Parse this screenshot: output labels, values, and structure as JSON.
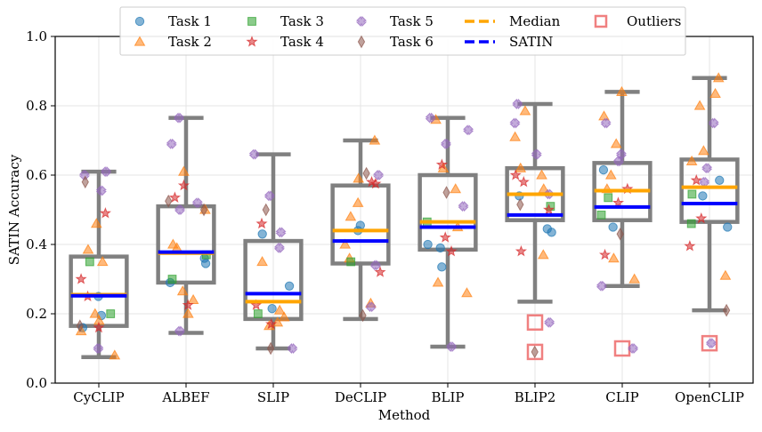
{
  "chart_data": {
    "type": "box",
    "xlabel": "Method",
    "ylabel": "SATIN Accuracy",
    "ylim": [
      0,
      1
    ],
    "yticks": [
      "0.0",
      "0.2",
      "0.4",
      "0.6",
      "0.8",
      "1.0"
    ],
    "ytick_values": [
      0,
      0.2,
      0.4,
      0.6,
      0.8,
      1.0
    ],
    "grid": true,
    "legend_position": "top-center",
    "categories": [
      "CyCLIP",
      "ALBEF",
      "SLIP",
      "DeCLIP",
      "BLIP",
      "BLIP2",
      "CLIP",
      "OpenCLIP"
    ],
    "legend": [
      {
        "label": "Task 1",
        "kind": "circle",
        "color": "#1f77b4"
      },
      {
        "label": "Task 2",
        "kind": "triangle",
        "color": "#ff7f0e"
      },
      {
        "label": "Task 3",
        "kind": "square",
        "color": "#2ca02c"
      },
      {
        "label": "Task 4",
        "kind": "star",
        "color": "#d62728"
      },
      {
        "label": "Task 5",
        "kind": "x",
        "color": "#9467bd"
      },
      {
        "label": "Task 6",
        "kind": "diamond",
        "color": "#8c564b"
      },
      {
        "label": "Median",
        "kind": "dash",
        "color": "#ffa500"
      },
      {
        "label": "SATIN",
        "kind": "dash",
        "color": "#0000ff"
      },
      {
        "label": "Outliers",
        "kind": "outlier",
        "color": "#f08080"
      }
    ],
    "boxes": [
      {
        "method": "CyCLIP",
        "whisker_low": 0.075,
        "q1": 0.165,
        "median": 0.255,
        "q3": 0.365,
        "whisker_high": 0.61,
        "satin": 0.252,
        "outliers": []
      },
      {
        "method": "ALBEF",
        "whisker_low": 0.145,
        "q1": 0.29,
        "median": 0.375,
        "q3": 0.51,
        "whisker_high": 0.765,
        "satin": 0.378,
        "outliers": []
      },
      {
        "method": "SLIP",
        "whisker_low": 0.1,
        "q1": 0.185,
        "median": 0.235,
        "q3": 0.41,
        "whisker_high": 0.66,
        "satin": 0.258,
        "outliers": []
      },
      {
        "method": "DeCLIP",
        "whisker_low": 0.185,
        "q1": 0.345,
        "median": 0.44,
        "q3": 0.57,
        "whisker_high": 0.7,
        "satin": 0.41,
        "outliers": []
      },
      {
        "method": "BLIP",
        "whisker_low": 0.105,
        "q1": 0.385,
        "median": 0.465,
        "q3": 0.6,
        "whisker_high": 0.765,
        "satin": 0.45,
        "outliers": []
      },
      {
        "method": "BLIP2",
        "whisker_low": 0.235,
        "q1": 0.47,
        "median": 0.545,
        "q3": 0.62,
        "whisker_high": 0.805,
        "satin": 0.485,
        "outliers": [
          0.175,
          0.09
        ]
      },
      {
        "method": "CLIP",
        "whisker_low": 0.28,
        "q1": 0.47,
        "median": 0.555,
        "q3": 0.635,
        "whisker_high": 0.84,
        "satin": 0.508,
        "outliers": [
          0.1
        ]
      },
      {
        "method": "OpenCLIP",
        "whisker_low": 0.21,
        "q1": 0.465,
        "median": 0.565,
        "q3": 0.645,
        "whisker_high": 0.88,
        "satin": 0.518,
        "outliers": [
          0.115
        ]
      }
    ],
    "points": {
      "CyCLIP": {
        "Task 1": [
          0.25,
          0.195,
          0.16
        ],
        "Task 2": [
          0.385,
          0.46,
          0.18,
          0.15,
          0.08,
          0.35,
          0.2
        ],
        "Task 3": [
          0.35,
          0.2
        ],
        "Task 4": [
          0.49,
          0.3,
          0.16,
          0.25
        ],
        "Task 5": [
          0.61,
          0.6,
          0.555,
          0.1
        ],
        "Task 6": [
          0.58,
          0.165
        ]
      },
      "ALBEF": {
        "Task 1": [
          0.36,
          0.345,
          0.29
        ],
        "Task 2": [
          0.61,
          0.5,
          0.4,
          0.265,
          0.2,
          0.24,
          0.39
        ],
        "Task 3": [
          0.3,
          0.37
        ],
        "Task 4": [
          0.57,
          0.535,
          0.225
        ],
        "Task 5": [
          0.765,
          0.69,
          0.52,
          0.5,
          0.15
        ],
        "Task 6": [
          0.525,
          0.5
        ]
      },
      "SLIP": {
        "Task 1": [
          0.43,
          0.28,
          0.215
        ],
        "Task 2": [
          0.35,
          0.175,
          0.165,
          0.19,
          0.21
        ],
        "Task 3": [
          0.2
        ],
        "Task 4": [
          0.46,
          0.17,
          0.225
        ],
        "Task 5": [
          0.66,
          0.54,
          0.435,
          0.39,
          0.1
        ],
        "Task 6": [
          0.5,
          0.1
        ]
      },
      "DeCLIP": {
        "Task 1": [
          0.455,
          0.44
        ],
        "Task 2": [
          0.7,
          0.59,
          0.52,
          0.48,
          0.36,
          0.23,
          0.4
        ],
        "Task 3": [
          0.35
        ],
        "Task 4": [
          0.58,
          0.575,
          0.32
        ],
        "Task 5": [
          0.6,
          0.34,
          0.22
        ],
        "Task 6": [
          0.605,
          0.195
        ]
      },
      "BLIP": {
        "Task 1": [
          0.4,
          0.39,
          0.335
        ],
        "Task 2": [
          0.76,
          0.62,
          0.56,
          0.45,
          0.29,
          0.26
        ],
        "Task 3": [
          0.465
        ],
        "Task 4": [
          0.63,
          0.38,
          0.42
        ],
        "Task 5": [
          0.765,
          0.73,
          0.69,
          0.51,
          0.105
        ],
        "Task 6": [
          0.55
        ]
      },
      "BLIP2": {
        "Task 1": [
          0.54,
          0.445,
          0.435
        ],
        "Task 2": [
          0.785,
          0.71,
          0.62,
          0.56,
          0.37,
          0.6
        ],
        "Task 3": [
          0.51
        ],
        "Task 4": [
          0.58,
          0.5,
          0.38,
          0.6
        ],
        "Task 5": [
          0.805,
          0.75,
          0.66,
          0.545,
          0.175
        ],
        "Task 6": [
          0.515,
          0.09
        ]
      },
      "CLIP": {
        "Task 1": [
          0.615,
          0.45
        ],
        "Task 2": [
          0.84,
          0.77,
          0.69,
          0.6,
          0.36,
          0.3,
          0.56
        ],
        "Task 3": [
          0.535,
          0.485
        ],
        "Task 4": [
          0.56,
          0.37,
          0.52
        ],
        "Task 5": [
          0.75,
          0.66,
          0.64,
          0.28,
          0.1
        ],
        "Task 6": [
          0.43
        ]
      },
      "OpenCLIP": {
        "Task 1": [
          0.585,
          0.54,
          0.45
        ],
        "Task 2": [
          0.88,
          0.835,
          0.8,
          0.67,
          0.64,
          0.31
        ],
        "Task 3": [
          0.545,
          0.46
        ],
        "Task 4": [
          0.585,
          0.475,
          0.395
        ],
        "Task 5": [
          0.75,
          0.62,
          0.58,
          0.115
        ],
        "Task 6": [
          0.21
        ]
      }
    }
  }
}
